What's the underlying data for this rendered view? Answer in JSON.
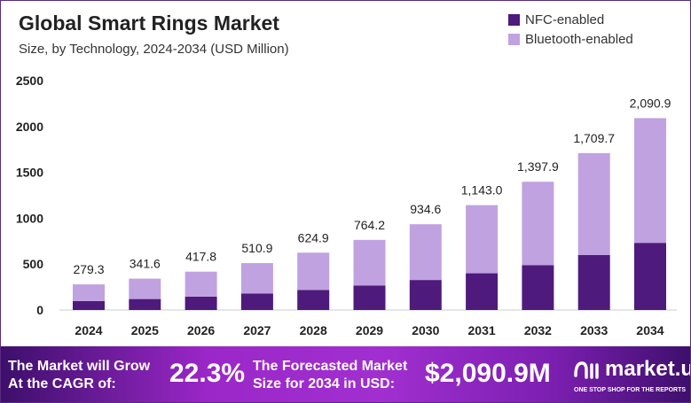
{
  "chart_data": {
    "type": "bar",
    "stacked": true,
    "title": "Global Smart Rings Market",
    "subtitle": "Size, by Technology, 2024-2034 (USD Million)",
    "categories": [
      "2024",
      "2025",
      "2026",
      "2027",
      "2028",
      "2029",
      "2030",
      "2031",
      "2032",
      "2033",
      "2034"
    ],
    "series": [
      {
        "name": "NFC-enabled",
        "color": "#4e1a7c",
        "values": [
          97.8,
          119.6,
          146.2,
          178.8,
          218.7,
          267.5,
          327.1,
          400.1,
          489.3,
          598.4,
          731.8
        ]
      },
      {
        "name": "Bluetooth-enabled",
        "color": "#c0a2e0",
        "values": [
          181.5,
          222.0,
          271.6,
          332.1,
          406.2,
          496.7,
          607.5,
          742.9,
          908.6,
          1111.3,
          1359.1
        ]
      }
    ],
    "totals": [
      279.3,
      341.6,
      417.8,
      510.9,
      624.9,
      764.2,
      934.6,
      1143.0,
      1397.9,
      1709.7,
      2090.9
    ],
    "total_labels": [
      "279.3",
      "341.6",
      "417.8",
      "510.9",
      "624.9",
      "764.2",
      "934.6",
      "1,143.0",
      "1,397.9",
      "1,709.7",
      "2,090.9"
    ],
    "yticks": [
      0,
      500,
      1000,
      1500,
      2000,
      2500
    ],
    "ylim": [
      0,
      2500
    ],
    "grid": false,
    "legend": "top-right"
  },
  "banner": {
    "cagr_label": "The Market will Grow At the CAGR of:",
    "cagr_value": "22.3%",
    "forecast_label": "The Forecasted Market Size for 2034 in USD:",
    "forecast_value": "$2,090.9M",
    "logo_name": "market.us",
    "logo_tagline": "ONE STOP SHOP FOR THE REPORTS"
  }
}
